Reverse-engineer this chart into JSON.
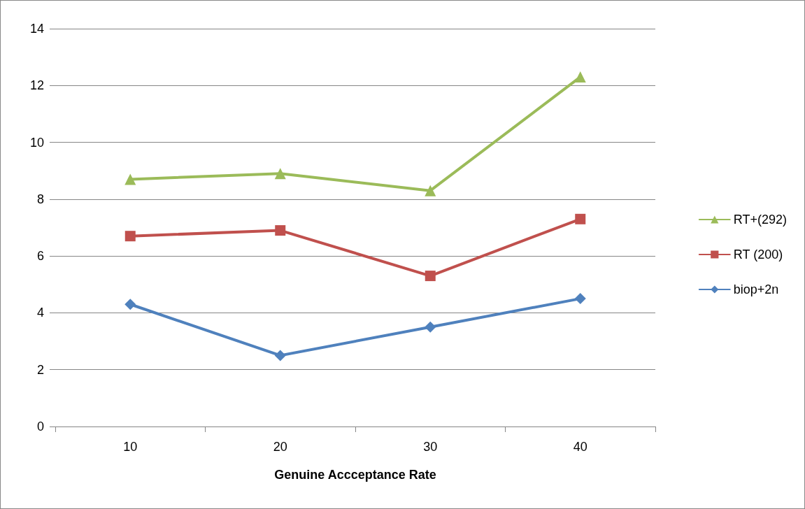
{
  "chart_data": {
    "type": "line",
    "xlabel": "Genuine Accceptance Rate",
    "categories": [
      "10",
      "20",
      "30",
      "40"
    ],
    "series": [
      {
        "name": "RT+(292)",
        "color": "#9bbb59",
        "marker": "triangle",
        "values": [
          8.7,
          8.9,
          8.3,
          12.3
        ]
      },
      {
        "name": "RT (200)",
        "color": "#c0504d",
        "marker": "square",
        "values": [
          6.7,
          6.9,
          5.3,
          7.3
        ]
      },
      {
        "name": "biop+2n",
        "color": "#4f81bd",
        "marker": "diamond",
        "values": [
          4.3,
          2.5,
          3.5,
          4.5
        ]
      }
    ],
    "ylim": [
      0,
      14
    ],
    "yticks": [
      0,
      2,
      4,
      6,
      8,
      10,
      12,
      14
    ],
    "grid": "y",
    "legend": "right",
    "line_style": "solid"
  }
}
